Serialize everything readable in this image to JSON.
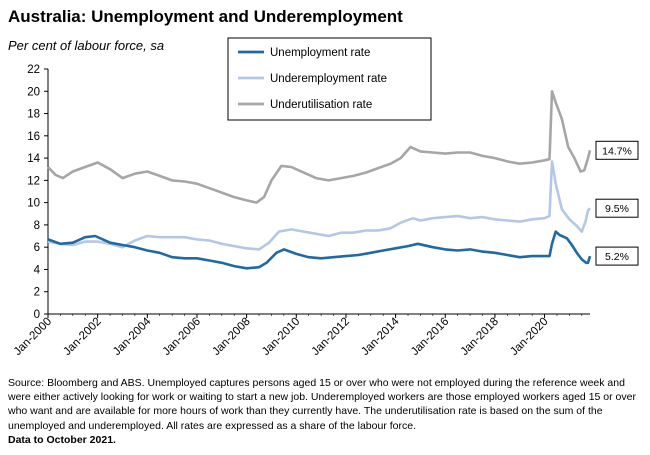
{
  "header": {
    "title": "Australia: Unemployment and Underemployment",
    "subtitle": "Per cent of labour force, sa"
  },
  "footer": {
    "source": "Source: Bloomberg and ABS. Unemployed captures persons aged 15 or over who were not employed during the reference week and were either actively looking for work or waiting to start a new job.  Underemployed workers are those employed workers aged 15 or over who want and are available for more hours of work than they currently have.  The underutilisation rate is based on the sum of the unemployed and underemployed. All rates are expressed as a share of the labour force.",
    "data_to": "Data to October 2021."
  },
  "chart_data": {
    "type": "line",
    "xlabel": "",
    "ylabel": "",
    "ylim": [
      0,
      22
    ],
    "yticks": [
      0,
      2,
      4,
      6,
      8,
      10,
      12,
      14,
      16,
      18,
      20,
      22
    ],
    "xlim": [
      2000.0,
      2021.83
    ],
    "xticks": [
      "Jan-2000",
      "Jan-2002",
      "Jan-2004",
      "Jan-2006",
      "Jan-2008",
      "Jan-2010",
      "Jan-2012",
      "Jan-2014",
      "Jan-2016",
      "Jan-2018",
      "Jan-2020"
    ],
    "xtick_values": [
      2000,
      2002,
      2004,
      2006,
      2008,
      2010,
      2012,
      2014,
      2016,
      2018,
      2020
    ],
    "grid": false,
    "legend_position": "top-center",
    "series": [
      {
        "name": "Unemployment rate",
        "color": "#1f6aa5",
        "end_label": "5.2%",
        "points": [
          [
            2000.0,
            6.7
          ],
          [
            2000.5,
            6.3
          ],
          [
            2001.0,
            6.4
          ],
          [
            2001.5,
            6.9
          ],
          [
            2001.9,
            7.0
          ],
          [
            2002.5,
            6.4
          ],
          [
            2003.0,
            6.2
          ],
          [
            2003.5,
            6.0
          ],
          [
            2004.0,
            5.7
          ],
          [
            2004.5,
            5.5
          ],
          [
            2005.0,
            5.1
          ],
          [
            2005.5,
            5.0
          ],
          [
            2006.0,
            5.0
          ],
          [
            2006.5,
            4.8
          ],
          [
            2007.0,
            4.6
          ],
          [
            2007.5,
            4.3
          ],
          [
            2008.0,
            4.1
          ],
          [
            2008.5,
            4.2
          ],
          [
            2008.8,
            4.6
          ],
          [
            2009.2,
            5.5
          ],
          [
            2009.5,
            5.8
          ],
          [
            2010.0,
            5.4
          ],
          [
            2010.5,
            5.1
          ],
          [
            2011.0,
            5.0
          ],
          [
            2011.5,
            5.1
          ],
          [
            2012.0,
            5.2
          ],
          [
            2012.5,
            5.3
          ],
          [
            2013.0,
            5.5
          ],
          [
            2013.5,
            5.7
          ],
          [
            2014.0,
            5.9
          ],
          [
            2014.5,
            6.1
          ],
          [
            2014.9,
            6.3
          ],
          [
            2015.5,
            6.0
          ],
          [
            2016.0,
            5.8
          ],
          [
            2016.5,
            5.7
          ],
          [
            2017.0,
            5.8
          ],
          [
            2017.5,
            5.6
          ],
          [
            2018.0,
            5.5
          ],
          [
            2018.5,
            5.3
          ],
          [
            2019.0,
            5.1
          ],
          [
            2019.5,
            5.2
          ],
          [
            2020.0,
            5.2
          ],
          [
            2020.2,
            5.2
          ],
          [
            2020.3,
            6.3
          ],
          [
            2020.45,
            7.4
          ],
          [
            2020.6,
            7.1
          ],
          [
            2020.9,
            6.8
          ],
          [
            2021.1,
            6.2
          ],
          [
            2021.3,
            5.5
          ],
          [
            2021.5,
            4.9
          ],
          [
            2021.67,
            4.6
          ],
          [
            2021.75,
            4.6
          ],
          [
            2021.83,
            5.2
          ]
        ]
      },
      {
        "name": "Underemployment rate",
        "color": "#b4c7e7",
        "end_label": "9.5%",
        "points": [
          [
            2000.0,
            6.5
          ],
          [
            2000.5,
            6.3
          ],
          [
            2001.0,
            6.2
          ],
          [
            2001.5,
            6.5
          ],
          [
            2002.0,
            6.5
          ],
          [
            2002.5,
            6.3
          ],
          [
            2003.0,
            6.0
          ],
          [
            2003.5,
            6.6
          ],
          [
            2004.0,
            7.0
          ],
          [
            2004.5,
            6.9
          ],
          [
            2005.0,
            6.9
          ],
          [
            2005.5,
            6.9
          ],
          [
            2006.0,
            6.7
          ],
          [
            2006.5,
            6.6
          ],
          [
            2007.0,
            6.3
          ],
          [
            2007.5,
            6.1
          ],
          [
            2008.0,
            5.9
          ],
          [
            2008.5,
            5.8
          ],
          [
            2008.9,
            6.4
          ],
          [
            2009.3,
            7.4
          ],
          [
            2009.8,
            7.6
          ],
          [
            2010.3,
            7.4
          ],
          [
            2010.8,
            7.2
          ],
          [
            2011.3,
            7.0
          ],
          [
            2011.8,
            7.3
          ],
          [
            2012.3,
            7.3
          ],
          [
            2012.8,
            7.5
          ],
          [
            2013.3,
            7.5
          ],
          [
            2013.8,
            7.7
          ],
          [
            2014.2,
            8.2
          ],
          [
            2014.7,
            8.6
          ],
          [
            2015.0,
            8.4
          ],
          [
            2015.5,
            8.6
          ],
          [
            2016.0,
            8.7
          ],
          [
            2016.5,
            8.8
          ],
          [
            2017.0,
            8.6
          ],
          [
            2017.5,
            8.7
          ],
          [
            2018.0,
            8.5
          ],
          [
            2018.5,
            8.4
          ],
          [
            2019.0,
            8.3
          ],
          [
            2019.5,
            8.5
          ],
          [
            2020.0,
            8.6
          ],
          [
            2020.2,
            8.8
          ],
          [
            2020.3,
            13.7
          ],
          [
            2020.45,
            11.7
          ],
          [
            2020.7,
            9.4
          ],
          [
            2021.0,
            8.5
          ],
          [
            2021.3,
            7.9
          ],
          [
            2021.5,
            7.4
          ],
          [
            2021.65,
            8.3
          ],
          [
            2021.75,
            9.3
          ],
          [
            2021.83,
            9.5
          ]
        ]
      },
      {
        "name": "Underutilisation rate",
        "color": "#a6a6a6",
        "end_label": "14.7%",
        "points": [
          [
            2000.0,
            13.2
          ],
          [
            2000.3,
            12.5
          ],
          [
            2000.6,
            12.2
          ],
          [
            2001.0,
            12.8
          ],
          [
            2001.5,
            13.2
          ],
          [
            2002.0,
            13.6
          ],
          [
            2002.5,
            13.0
          ],
          [
            2003.0,
            12.2
          ],
          [
            2003.5,
            12.6
          ],
          [
            2004.0,
            12.8
          ],
          [
            2004.5,
            12.4
          ],
          [
            2005.0,
            12.0
          ],
          [
            2005.5,
            11.9
          ],
          [
            2006.0,
            11.7
          ],
          [
            2006.5,
            11.3
          ],
          [
            2007.0,
            10.9
          ],
          [
            2007.5,
            10.5
          ],
          [
            2008.0,
            10.2
          ],
          [
            2008.4,
            10.0
          ],
          [
            2008.7,
            10.5
          ],
          [
            2009.0,
            12.0
          ],
          [
            2009.4,
            13.3
          ],
          [
            2009.8,
            13.2
          ],
          [
            2010.3,
            12.7
          ],
          [
            2010.8,
            12.2
          ],
          [
            2011.3,
            12.0
          ],
          [
            2011.8,
            12.2
          ],
          [
            2012.3,
            12.4
          ],
          [
            2012.8,
            12.7
          ],
          [
            2013.3,
            13.1
          ],
          [
            2013.8,
            13.5
          ],
          [
            2014.2,
            14.0
          ],
          [
            2014.6,
            15.0
          ],
          [
            2015.0,
            14.6
          ],
          [
            2015.5,
            14.5
          ],
          [
            2016.0,
            14.4
          ],
          [
            2016.5,
            14.5
          ],
          [
            2017.0,
            14.5
          ],
          [
            2017.5,
            14.2
          ],
          [
            2018.0,
            14.0
          ],
          [
            2018.5,
            13.7
          ],
          [
            2019.0,
            13.5
          ],
          [
            2019.5,
            13.6
          ],
          [
            2020.0,
            13.8
          ],
          [
            2020.2,
            13.9
          ],
          [
            2020.3,
            20.0
          ],
          [
            2020.45,
            19.0
          ],
          [
            2020.7,
            17.5
          ],
          [
            2020.95,
            15.0
          ],
          [
            2021.2,
            14.0
          ],
          [
            2021.45,
            12.8
          ],
          [
            2021.6,
            12.9
          ],
          [
            2021.75,
            14.0
          ],
          [
            2021.83,
            14.7
          ]
        ]
      }
    ]
  }
}
